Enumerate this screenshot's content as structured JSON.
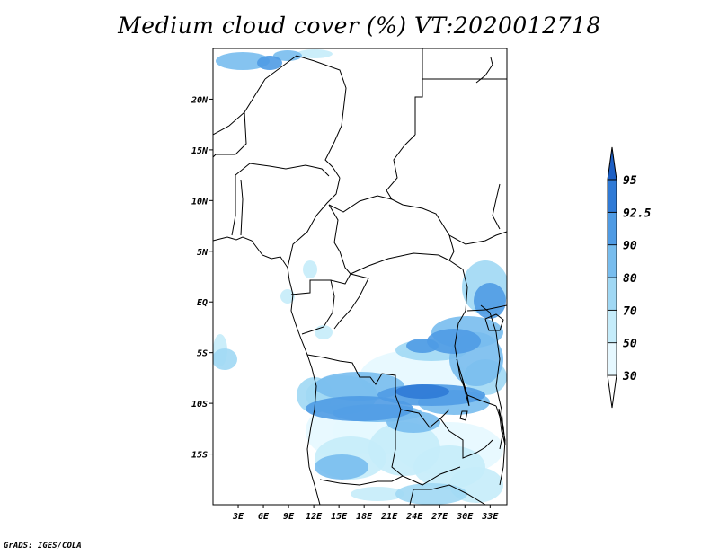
{
  "title": "Medium cloud cover (%) VT:2020012718",
  "credit": "GrADS: IGES/COLA",
  "map": {
    "lon_range": [
      0,
      35
    ],
    "lat_range": [
      -20,
      25
    ],
    "lon_ticks": [
      {
        "value": 3,
        "label": "3E"
      },
      {
        "value": 6,
        "label": "6E"
      },
      {
        "value": 9,
        "label": "9E"
      },
      {
        "value": 12,
        "label": "12E"
      },
      {
        "value": 15,
        "label": "15E"
      },
      {
        "value": 18,
        "label": "18E"
      },
      {
        "value": 21,
        "label": "21E"
      },
      {
        "value": 24,
        "label": "24E"
      },
      {
        "value": 27,
        "label": "27E"
      },
      {
        "value": 30,
        "label": "30E"
      },
      {
        "value": 33,
        "label": "33E"
      }
    ],
    "lat_ticks": [
      {
        "value": 20,
        "label": "20N"
      },
      {
        "value": 15,
        "label": "15N"
      },
      {
        "value": 10,
        "label": "10N"
      },
      {
        "value": 5,
        "label": "5N"
      },
      {
        "value": 0,
        "label": "EQ"
      },
      {
        "value": -5,
        "label": "5S"
      },
      {
        "value": -10,
        "label": "10S"
      },
      {
        "value": -15,
        "label": "15S"
      }
    ]
  },
  "colorbar": {
    "levels": [
      "30",
      "50",
      "70",
      "80",
      "90",
      "92.5",
      "95"
    ],
    "colors": [
      "#e6f8ff",
      "#c5ecfa",
      "#a0d8f4",
      "#78bdee",
      "#4f9be4",
      "#2f7ad6",
      "#1d5fc4"
    ]
  }
}
